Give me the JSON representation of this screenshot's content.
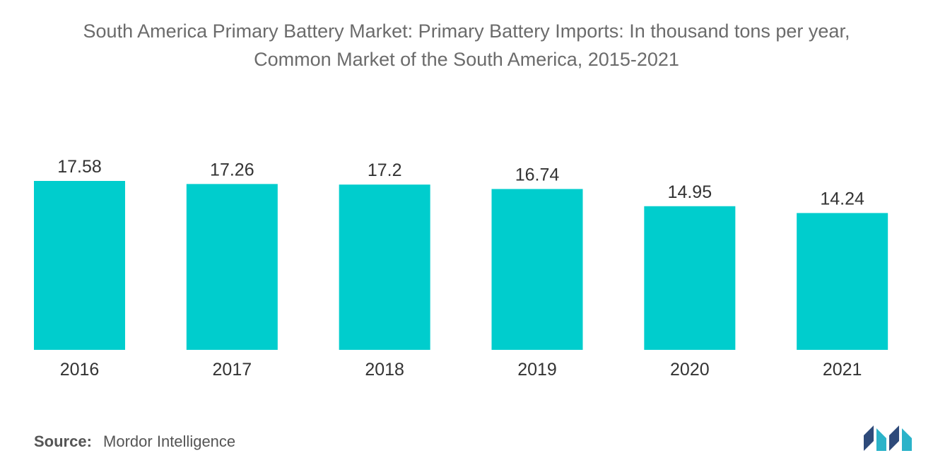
{
  "title": {
    "line1": "South America Primary Battery Market: Primary Battery Imports: In thousand tons per year,",
    "line2": "Common Market of the South America, 2015-2021"
  },
  "chart_data": {
    "type": "bar",
    "title": "South America Primary Battery Market: Primary Battery Imports: In thousand tons per year, Common Market of the South America, 2015-2021",
    "categories": [
      "2016",
      "2017",
      "2018",
      "2019",
      "2020",
      "2021"
    ],
    "values": [
      17.58,
      17.26,
      17.2,
      16.74,
      14.95,
      14.24
    ],
    "value_labels": [
      "17.58",
      "17.26",
      "17.2",
      "16.74",
      "14.95",
      "14.24"
    ],
    "xlabel": "",
    "ylabel": "",
    "ylim": [
      0,
      18.8
    ],
    "grid": false,
    "bar_color": "#00cdcd"
  },
  "source": {
    "label": "Source:",
    "text": "Mordor Intelligence"
  },
  "logo": {
    "name": "mordor-intelligence-logo",
    "colors": [
      "#2e4a7a",
      "#2bb3c9"
    ]
  }
}
